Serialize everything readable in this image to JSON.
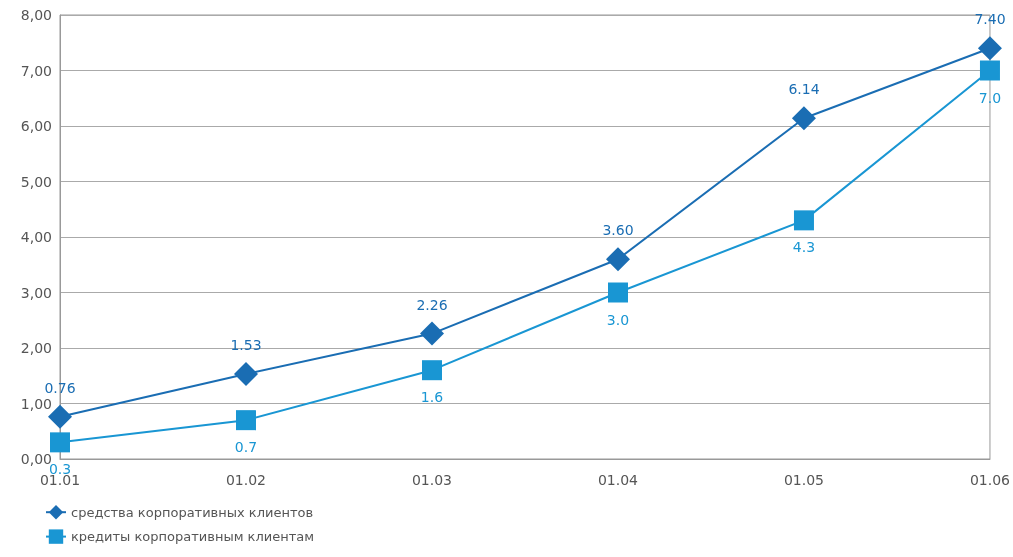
{
  "chart_data": {
    "type": "line",
    "categories": [
      "01.01",
      "01.02",
      "01.03",
      "01.04",
      "01.05",
      "01.06"
    ],
    "series": [
      {
        "name": "средства корпоративных клиентов",
        "color": "#1a6db3",
        "marker": "diamond",
        "values": [
          0.76,
          1.53,
          2.26,
          3.6,
          6.14,
          7.4
        ],
        "value_labels": [
          "0.76",
          "1.53",
          "2.26",
          "3.60",
          "6.14",
          "7.40"
        ]
      },
      {
        "name": "кредиты корпоративным клиентам",
        "color": "#1996d3",
        "marker": "square",
        "values": [
          0.3,
          0.7,
          1.6,
          3.0,
          4.3,
          7.0
        ],
        "value_labels": [
          "0.3",
          "0.7",
          "1.6",
          "3.0",
          "4.3",
          "7.0"
        ]
      }
    ],
    "ylim": [
      0,
      8
    ],
    "yticks": [
      {
        "value": 0,
        "label": "0,00"
      },
      {
        "value": 1,
        "label": "1,00"
      },
      {
        "value": 2,
        "label": "2,00"
      },
      {
        "value": 3,
        "label": "3,00"
      },
      {
        "value": 4,
        "label": "4,00"
      },
      {
        "value": 5,
        "label": "5,00"
      },
      {
        "value": 6,
        "label": "6,00"
      },
      {
        "value": 7,
        "label": "7,00"
      },
      {
        "value": 8,
        "label": "8,00"
      }
    ],
    "grid": "y",
    "legend": "bottom left",
    "line_style": "solid"
  }
}
